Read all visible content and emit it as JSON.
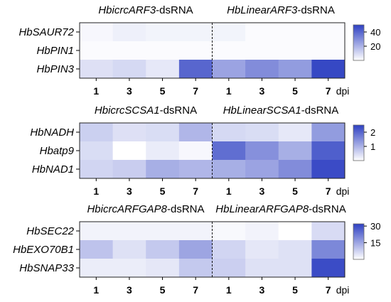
{
  "chart_data": [
    {
      "type": "heatmap",
      "headers": [
        {
          "italic": "HbicrcARF3",
          "suffix": "-dsRNA"
        },
        {
          "italic": "HbLinearARF3",
          "suffix": "-dsRNA"
        }
      ],
      "rows": [
        "HbSAUR72",
        "HbPIN1",
        "HbPIN3"
      ],
      "columns": [
        "1",
        "3",
        "5",
        "7",
        "1",
        "3",
        "5",
        "7"
      ],
      "x_unit": "dpi",
      "values": [
        [
          2,
          4,
          3,
          3,
          3,
          1,
          1,
          1
        ],
        [
          1,
          1,
          1,
          1,
          1,
          1,
          1,
          1
        ],
        [
          8,
          10,
          6,
          40,
          24,
          30,
          26,
          48
        ]
      ],
      "colorbar": {
        "min": 0,
        "max": 50,
        "ticks": [
          20,
          40
        ]
      },
      "colors": {
        "low": "#ffffff",
        "high": "#2e40c2"
      }
    },
    {
      "type": "heatmap",
      "headers": [
        {
          "italic": "HbicrcSCSA1",
          "suffix": "-dsRNA"
        },
        {
          "italic": "HbLinearSCSA1",
          "suffix": "-dsRNA"
        }
      ],
      "rows": [
        "HbNADH",
        "Hbatp9",
        "HbNAD1"
      ],
      "columns": [
        "1",
        "3",
        "5",
        "7",
        "1",
        "3",
        "5",
        "7"
      ],
      "x_unit": "dpi",
      "values": [
        [
          0.62,
          0.4,
          0.45,
          0.95,
          0.5,
          0.45,
          0.3,
          1.3
        ],
        [
          0.45,
          0.0,
          0.25,
          0.1,
          1.9,
          1.45,
          1.05,
          2.1
        ],
        [
          0.55,
          0.65,
          1.05,
          0.95,
          1.05,
          1.2,
          1.5,
          2.35
        ]
      ],
      "colorbar": {
        "min": 0,
        "max": 2.5,
        "ticks": [
          1,
          2
        ]
      },
      "colors": {
        "low": "#ffffff",
        "high": "#2e40c2"
      }
    },
    {
      "type": "heatmap",
      "headers": [
        {
          "italic": "HbicrcARFGAP8",
          "suffix": "-dsRNA"
        },
        {
          "italic": "HbLinearARFGAP8",
          "suffix": "-dsRNA"
        }
      ],
      "rows": [
        "HbSEC22",
        "HbEXO70B1",
        "HbSNAP33"
      ],
      "columns": [
        "1",
        "3",
        "5",
        "7",
        "1",
        "3",
        "5",
        "7"
      ],
      "x_unit": "dpi",
      "values": [
        [
          2,
          2,
          2,
          2,
          1,
          2,
          0,
          6
        ],
        [
          10,
          5,
          9,
          15,
          7,
          4,
          5,
          20
        ],
        [
          3,
          3,
          4,
          9,
          8,
          5,
          5,
          30
        ]
      ],
      "colorbar": {
        "min": 0,
        "max": 32,
        "ticks": [
          15,
          30
        ]
      },
      "colors": {
        "low": "#ffffff",
        "high": "#2e40c2"
      }
    }
  ]
}
